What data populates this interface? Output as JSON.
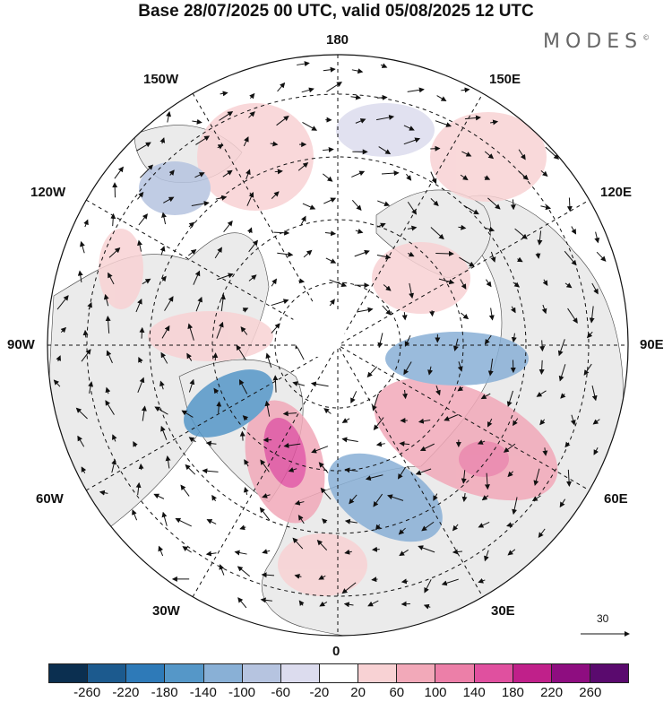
{
  "title": "Base 28/07/2025 00 UTC, valid 05/08/2025 12 UTC",
  "brand": "MODES",
  "brand_mark": "©",
  "longitude_labels": {
    "top": "180",
    "bottom": "0",
    "left": "90W",
    "right": "90E",
    "upper_left_1": "150W",
    "upper_left_2": "120W",
    "upper_right_1": "150E",
    "upper_right_2": "120E",
    "lower_left_1": "60W",
    "lower_left_2": "30W",
    "lower_right_1": "60E",
    "lower_right_2": "30E"
  },
  "reference_vector": {
    "label": "30"
  },
  "colorbar": {
    "colors": [
      "#0b2f50",
      "#1c5a8e",
      "#2e7ab8",
      "#5597c8",
      "#89b0d6",
      "#b6c4e0",
      "#dcdcee",
      "#ffffff",
      "#f8d2d4",
      "#f2a9b9",
      "#ec7fa8",
      "#e0509f",
      "#c0208a",
      "#8e0d80",
      "#5a0a6e"
    ],
    "ticks": [
      "-260",
      "-220",
      "-180",
      "-140",
      "-100",
      "-60",
      "-20",
      "20",
      "60",
      "100",
      "140",
      "180",
      "220",
      "260"
    ]
  }
}
